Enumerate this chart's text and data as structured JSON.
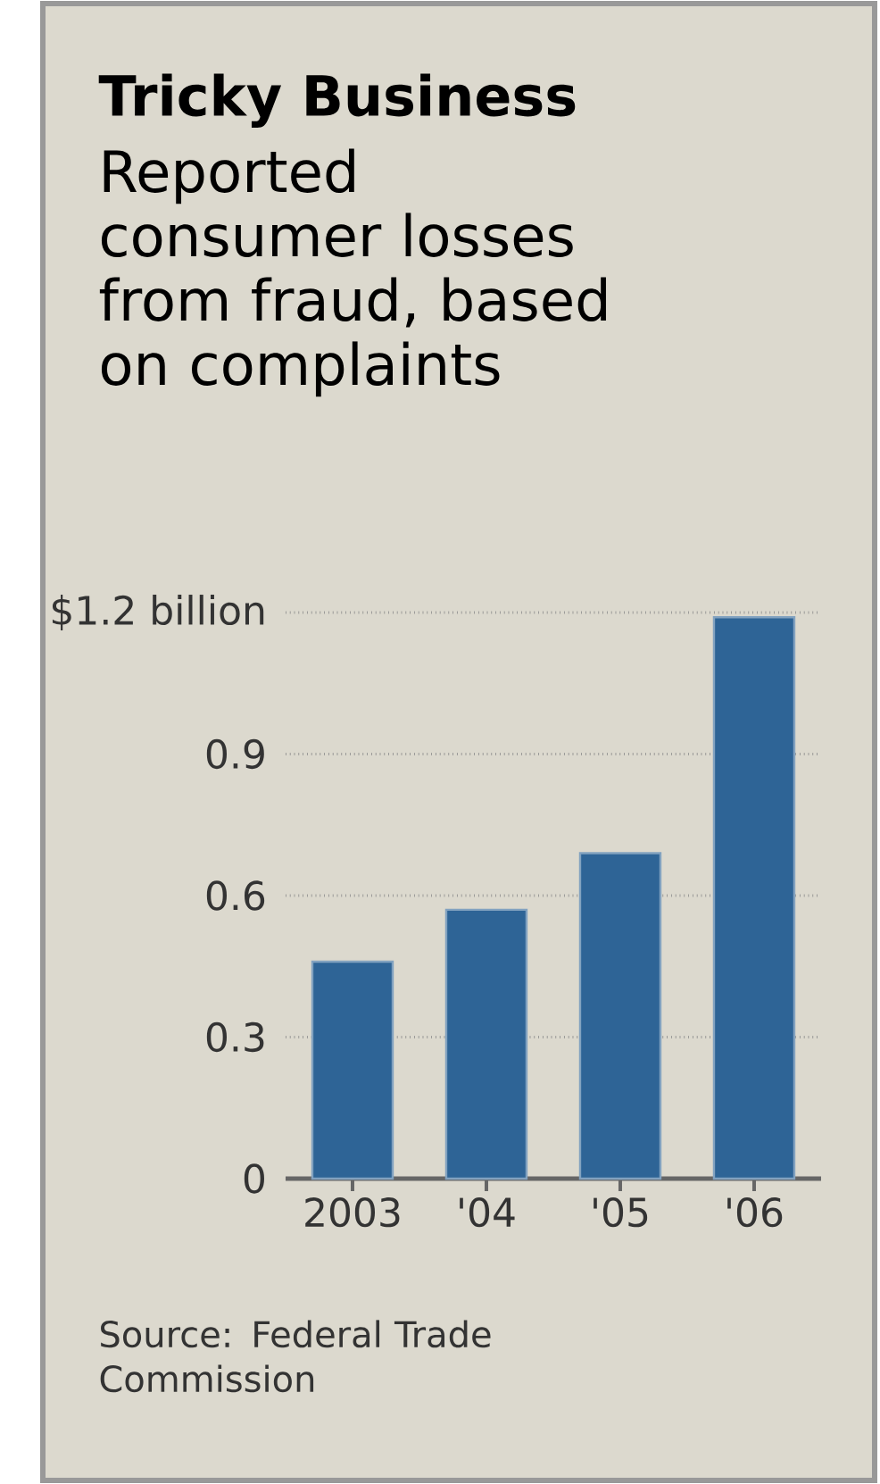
{
  "chart_data": {
    "type": "bar",
    "title": "Tricky Business",
    "subtitle": "Reported consumer losses from fraud, based on complaints",
    "categories": [
      "2003",
      "'04",
      "'05",
      "'06"
    ],
    "values": [
      0.46,
      0.57,
      0.69,
      1.19
    ],
    "color": "#2e6496",
    "ylim": [
      0,
      1.2
    ],
    "yticks": [
      0,
      0.3,
      0.6,
      0.9,
      {
        "value": 1.2,
        "label": "$1.2 billion"
      }
    ],
    "grid": "y",
    "annotations": [
      "Source: Federal Trade Commission"
    ]
  }
}
